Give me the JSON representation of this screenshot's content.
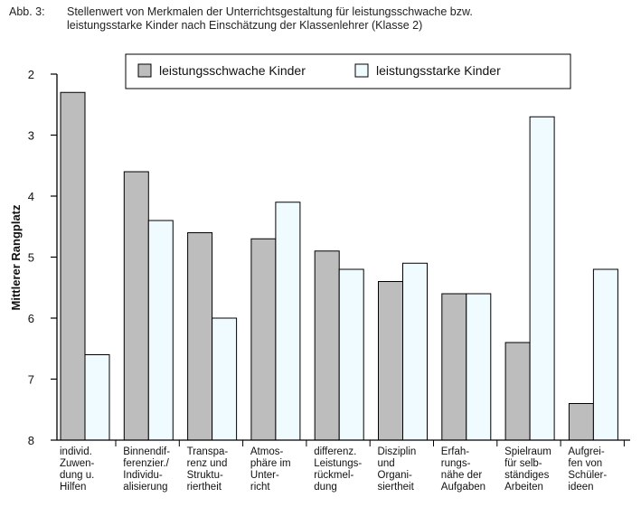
{
  "figure": {
    "label": "Abb. 3:",
    "title_line1": "Stellenwert von Merkmalen der Unterrichtsgestaltung für leistungsschwache bzw.",
    "title_line2": "leistungsstarke Kinder nach Einschätzung der Klassenlehrer (Klasse 2)"
  },
  "colors": {
    "series_weak": "#bdbdbd",
    "series_strong": "#f0fbff",
    "stroke": "#000000"
  },
  "chart_data": {
    "type": "bar",
    "title": "Stellenwert von Merkmalen der Unterrichtsgestaltung für leistungsschwache bzw. leistungsstarke Kinder nach Einschätzung der Klassenlehrer (Klasse 2)",
    "xlabel": "",
    "ylabel": "Mittlerer Rangplatz",
    "ylim": [
      2,
      8
    ],
    "y_inverted": true,
    "y_ticks": [
      2,
      3,
      4,
      5,
      6,
      7,
      8
    ],
    "legend_position": "top-center",
    "categories": [
      [
        "individ.",
        "Zuwen-",
        "dung u.",
        "Hilfen"
      ],
      [
        "Binnendif-",
        "ferenzier./",
        "Individu-",
        "alisierung"
      ],
      [
        "Transpa-",
        "renz und",
        "Struktu-",
        "riertheit"
      ],
      [
        "Atmos-",
        "phäre im",
        "Unter-",
        "richt"
      ],
      [
        "differenz.",
        "Leistungs-",
        "rückmel-",
        "dung"
      ],
      [
        "Disziplin",
        "und",
        "Organi-",
        "siertheit"
      ],
      [
        "Erfah-",
        "rungs-",
        "nähe der",
        "Aufgaben"
      ],
      [
        "Spielraum",
        "für selb-",
        "ständiges",
        "Arbeiten"
      ],
      [
        "Aufgrei-",
        "fen von",
        "Schüler-",
        "ideen"
      ]
    ],
    "series": [
      {
        "name": "leistungsschwache Kinder",
        "values": [
          2.3,
          3.6,
          4.6,
          4.7,
          4.9,
          5.4,
          5.6,
          6.4,
          7.4
        ]
      },
      {
        "name": "leistungsstarke Kinder",
        "values": [
          6.6,
          4.4,
          6.0,
          4.1,
          5.2,
          5.1,
          5.6,
          2.7,
          5.2
        ]
      }
    ]
  }
}
